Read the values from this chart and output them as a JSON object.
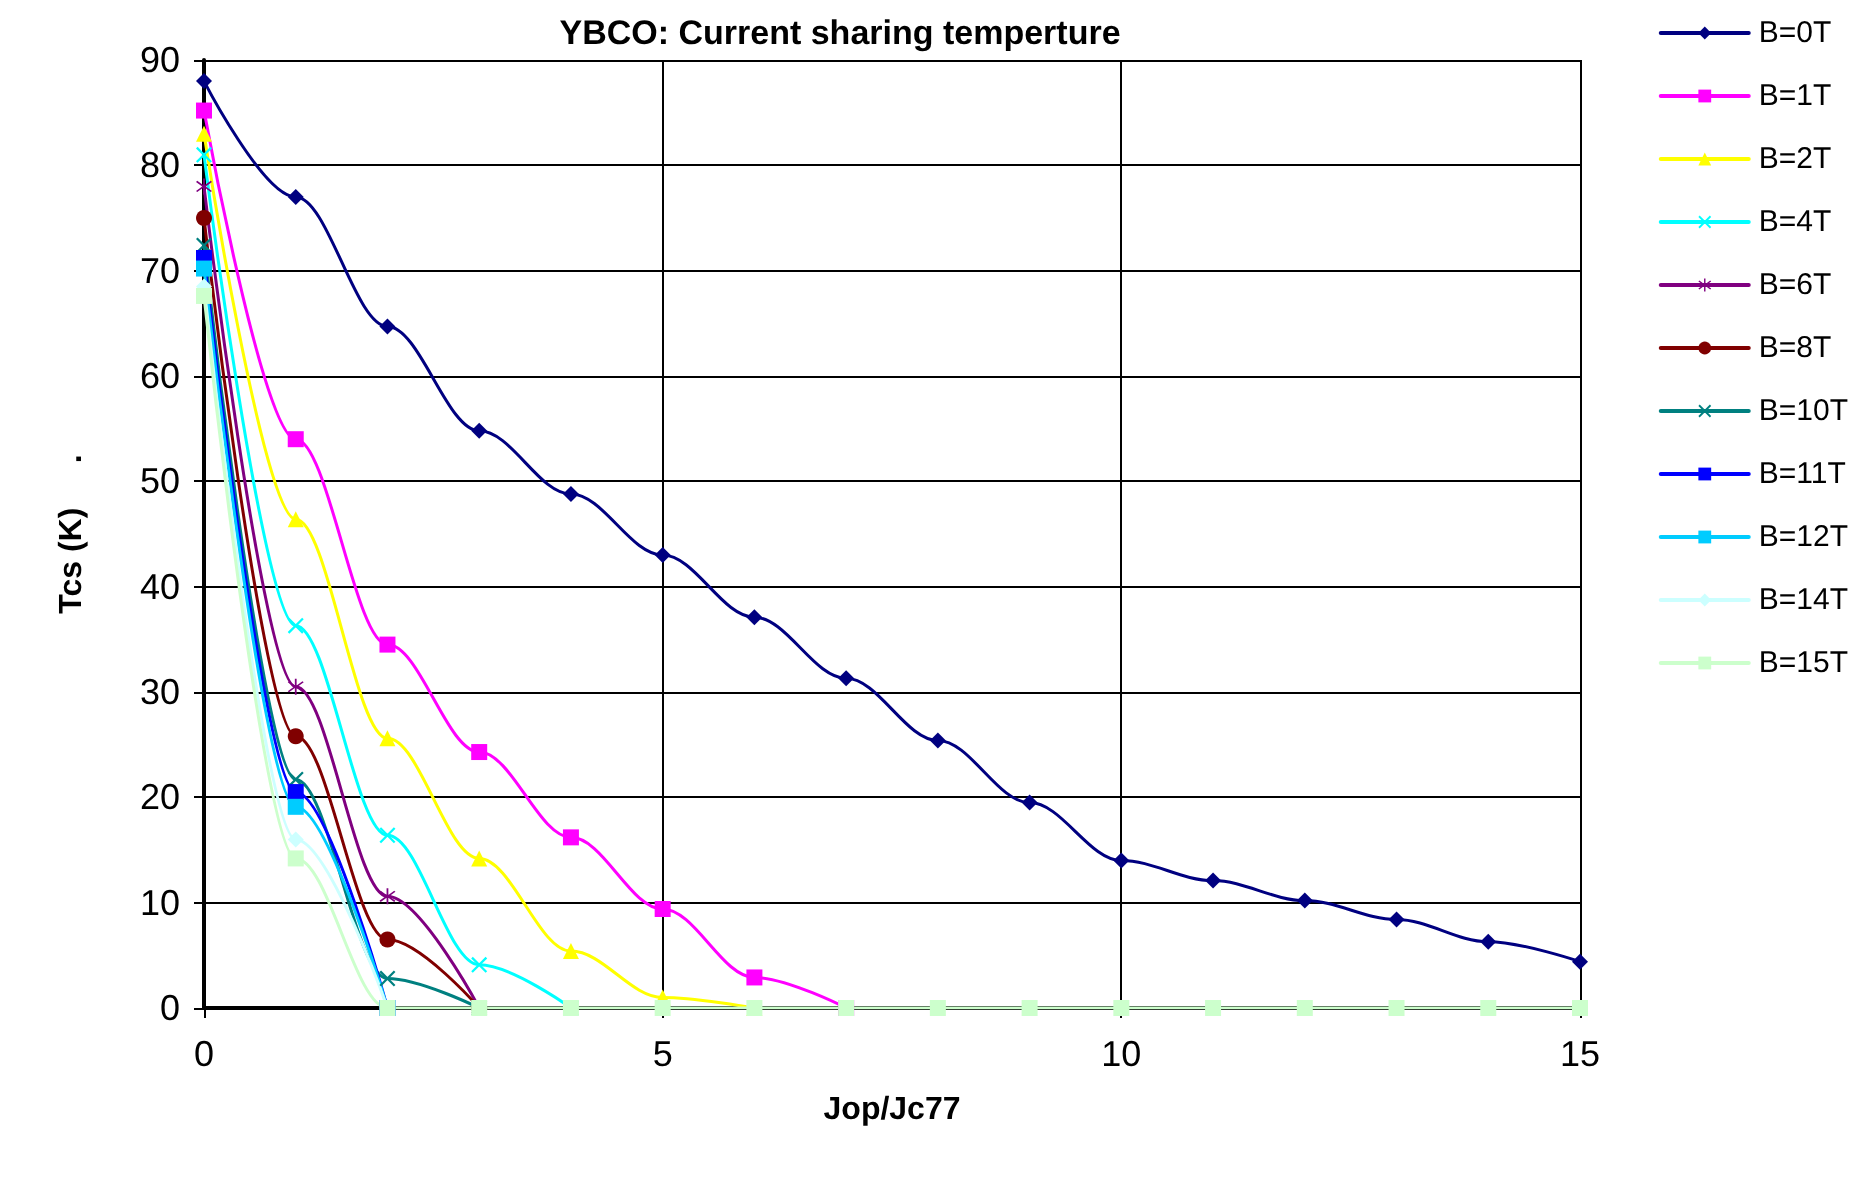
{
  "chart_data": {
    "type": "line",
    "title": "YBCO: Current sharing temperture",
    "xlabel": "Jop/Jc77",
    "ylabel": "Tcs (K)     .",
    "x": [
      0,
      1,
      2,
      3,
      4,
      5,
      6,
      7,
      8,
      9,
      10,
      11,
      12,
      13,
      14,
      15
    ],
    "xlim": [
      0,
      15
    ],
    "xticks": [
      0,
      5,
      10,
      15
    ],
    "ylim": [
      0,
      90
    ],
    "yticks": [
      0,
      10,
      20,
      30,
      40,
      50,
      60,
      70,
      80,
      90
    ],
    "grid": true,
    "legend": "right",
    "line_style": "solid",
    "series": [
      {
        "name": "B=0T",
        "color": "#000080",
        "marker": "diamond",
        "values": [
          88,
          77,
          64.7,
          54.8,
          48.8,
          43,
          37.1,
          31.3,
          25.4,
          19.5,
          14,
          12.1,
          10.2,
          8.4,
          6.3,
          4.4
        ]
      },
      {
        "name": "B=1T",
        "color": "#ff00ff",
        "marker": "square",
        "values": [
          85.2,
          54,
          34.5,
          24.3,
          16.2,
          9.4,
          2.9,
          0,
          null,
          null,
          null,
          null,
          null,
          null,
          null,
          null
        ]
      },
      {
        "name": "B=2T",
        "color": "#ffff00",
        "marker": "triangle",
        "values": [
          83,
          46.4,
          25.6,
          14.2,
          5.4,
          1,
          0,
          null,
          null,
          null,
          null,
          null,
          null,
          null,
          null,
          null
        ]
      },
      {
        "name": "B=4T",
        "color": "#00ffff",
        "marker": "cross",
        "values": [
          81,
          36.3,
          16.4,
          4.1,
          0,
          null,
          null,
          null,
          null,
          null,
          null,
          null,
          null,
          null,
          null,
          null
        ]
      },
      {
        "name": "B=6T",
        "color": "#800080",
        "marker": "star",
        "values": [
          78,
          30.5,
          10.6,
          0,
          null,
          null,
          null,
          null,
          null,
          null,
          null,
          null,
          null,
          null,
          null,
          null
        ]
      },
      {
        "name": "B=8T",
        "color": "#800000",
        "marker": "circle",
        "values": [
          75,
          25.8,
          6.5,
          0,
          null,
          null,
          null,
          null,
          null,
          null,
          null,
          null,
          null,
          null,
          null,
          null
        ]
      },
      {
        "name": "B=10T",
        "color": "#008080",
        "marker": "cross",
        "values": [
          72.4,
          21.7,
          2.8,
          0,
          null,
          null,
          null,
          null,
          null,
          null,
          null,
          null,
          null,
          null,
          null,
          null
        ]
      },
      {
        "name": "B=11T",
        "color": "#0000ff",
        "marker": "square",
        "values": [
          71.2,
          20.5,
          0,
          null,
          null,
          null,
          null,
          null,
          null,
          null,
          null,
          null,
          null,
          null,
          null,
          null
        ]
      },
      {
        "name": "B=12T",
        "color": "#00ccff",
        "marker": "square",
        "values": [
          70.2,
          19.1,
          0,
          null,
          null,
          null,
          null,
          null,
          null,
          null,
          null,
          null,
          null,
          null,
          null,
          null
        ]
      },
      {
        "name": "B=14T",
        "color": "#ccffff",
        "marker": "diamond",
        "values": [
          68.5,
          16,
          0,
          null,
          null,
          null,
          null,
          null,
          null,
          null,
          null,
          null,
          null,
          null,
          null,
          null
        ]
      },
      {
        "name": "B=15T",
        "color": "#ccffcc",
        "marker": "square",
        "values": [
          67.6,
          14.2,
          0,
          0,
          0,
          0,
          0,
          0,
          0,
          0,
          0,
          0,
          0,
          0,
          0,
          0
        ]
      }
    ]
  }
}
